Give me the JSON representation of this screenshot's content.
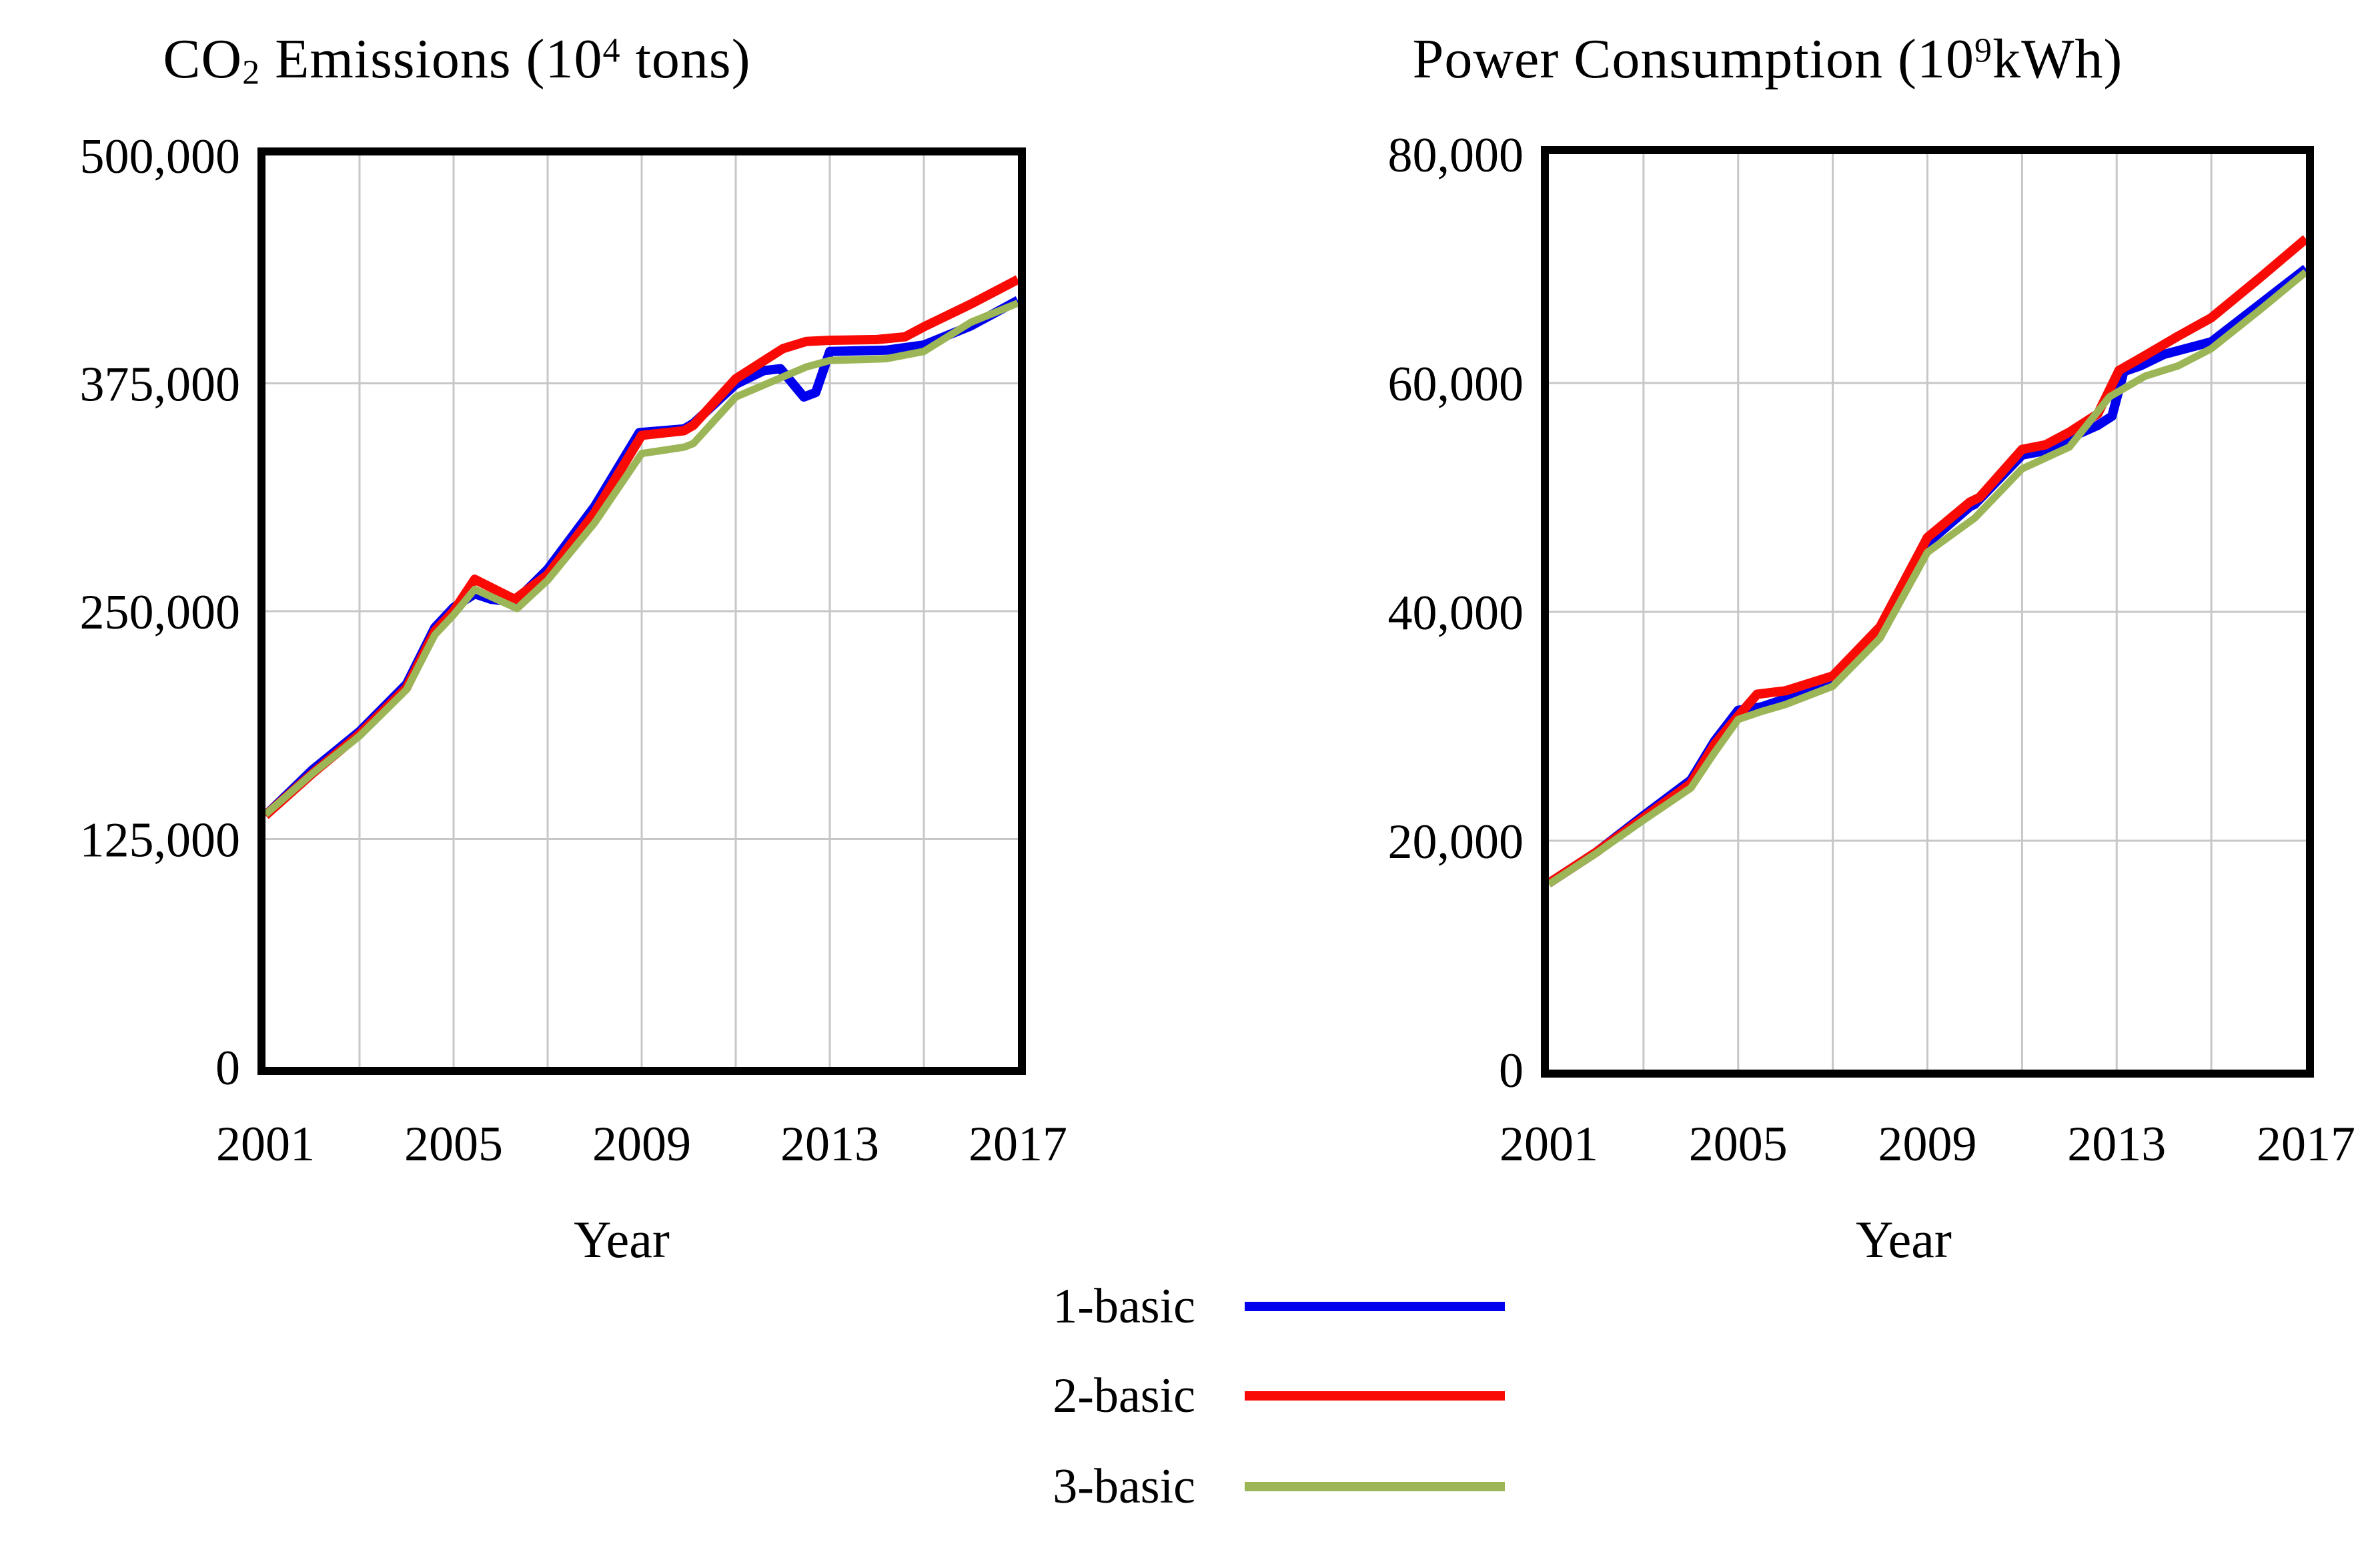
{
  "page": {
    "background": "#ffffff"
  },
  "colors": {
    "blue": "#0000EE",
    "red": "#FA0A05",
    "green": "#9BB557",
    "grid": "#C7C7C7",
    "frame": "#000000",
    "text": "#000000"
  },
  "legend": {
    "items": [
      {
        "label": "1-basic",
        "color": "blue"
      },
      {
        "label": "2-basic",
        "color": "red"
      },
      {
        "label": "3-basic",
        "color": "green"
      }
    ]
  },
  "chart_data": [
    {
      "type": "line",
      "title_parts": {
        "pre": "CO",
        "sub": "2",
        "mid": " Emissions (10",
        "sup": "4",
        "post": " tons)"
      },
      "title_plain": "CO2 Emissions (10^4 tons)",
      "xlabel": "Year",
      "xlim": [
        2001,
        2017
      ],
      "ylim": [
        0,
        500000
      ],
      "grid_on": true,
      "v_grid_years": [
        2003,
        2005,
        2007,
        2009,
        2011,
        2013,
        2015
      ],
      "h_grid_values": [
        125000,
        250000,
        375000
      ],
      "y_ticks": [
        {
          "v": 0,
          "label": "0"
        },
        {
          "v": 125000,
          "label": "125,000"
        },
        {
          "v": 250000,
          "label": "250,000"
        },
        {
          "v": 375000,
          "label": "375,000"
        },
        {
          "v": 500000,
          "label": "500,000"
        }
      ],
      "x_ticks": [
        {
          "v": 2001,
          "label": "2001"
        },
        {
          "v": 2005,
          "label": "2005"
        },
        {
          "v": 2009,
          "label": "2009"
        },
        {
          "v": 2013,
          "label": "2013"
        },
        {
          "v": 2017,
          "label": "2017"
        }
      ],
      "series": [
        {
          "name": "1-basic",
          "color": "blue",
          "width": 14,
          "points": [
            [
              2001,
              138000
            ],
            [
              2002,
              163000
            ],
            [
              2003,
              184000
            ],
            [
              2004,
              210000
            ],
            [
              2004.6,
              241000
            ],
            [
              2005,
              252000
            ],
            [
              2005.45,
              259500
            ],
            [
              2005.8,
              256500
            ],
            [
              2006.3,
              255000
            ],
            [
              2007,
              273000
            ],
            [
              2008,
              307500
            ],
            [
              2008.95,
              348000
            ],
            [
              2009.9,
              350000
            ],
            [
              2010.1,
              353000
            ],
            [
              2011,
              374500
            ],
            [
              2011.6,
              382000
            ],
            [
              2011.95,
              383000
            ],
            [
              2012.45,
              367500
            ],
            [
              2012.7,
              370000
            ],
            [
              2013,
              392500
            ],
            [
              2013.5,
              392800
            ],
            [
              2014.2,
              393200
            ],
            [
              2015,
              396000
            ],
            [
              2016,
              406500
            ],
            [
              2017,
              420500
            ]
          ]
        },
        {
          "name": "2-basic",
          "color": "red",
          "width": 14,
          "points": [
            [
              2001,
              138000
            ],
            [
              2002,
              161000
            ],
            [
              2003,
              182500
            ],
            [
              2004,
              208000
            ],
            [
              2004.6,
              239000
            ],
            [
              2005,
              250000
            ],
            [
              2005.45,
              267500
            ],
            [
              2006.3,
              256500
            ],
            [
              2007,
              270000
            ],
            [
              2008,
              304000
            ],
            [
              2009,
              346500
            ],
            [
              2009.9,
              349000
            ],
            [
              2010.1,
              352000
            ],
            [
              2011,
              377500
            ],
            [
              2012,
              394000
            ],
            [
              2012.5,
              398000
            ],
            [
              2013,
              398600
            ],
            [
              2014,
              399000
            ],
            [
              2014.6,
              400500
            ],
            [
              2015,
              406000
            ],
            [
              2016,
              418500
            ],
            [
              2017,
              432000
            ]
          ]
        },
        {
          "name": "3-basic",
          "color": "green",
          "width": 11,
          "points": [
            [
              2001,
              138500
            ],
            [
              2002,
              161000
            ],
            [
              2003,
              181500
            ],
            [
              2004,
              207000
            ],
            [
              2004.6,
              237000
            ],
            [
              2005,
              248000
            ],
            [
              2005.45,
              262000
            ],
            [
              2006.35,
              251500
            ],
            [
              2007,
              267000
            ],
            [
              2008,
              298500
            ],
            [
              2009,
              336500
            ],
            [
              2009.9,
              340000
            ],
            [
              2010.1,
              342000
            ],
            [
              2011,
              367500
            ],
            [
              2012,
              378500
            ],
            [
              2012.5,
              384000
            ],
            [
              2013,
              387500
            ],
            [
              2014.2,
              388500
            ],
            [
              2015,
              392500
            ],
            [
              2016,
              408500
            ],
            [
              2017,
              419000
            ]
          ]
        }
      ]
    },
    {
      "type": "line",
      "title_parts": {
        "pre": "Power Consumption (10",
        "sub": "",
        "mid": "",
        "sup": "9",
        "post": "kWh)"
      },
      "title_plain": "Power Consumption (10^9 kWh)",
      "xlabel": "Year",
      "xlim": [
        2001,
        2017
      ],
      "ylim": [
        0,
        80000
      ],
      "grid_on": true,
      "v_grid_years": [
        2003,
        2005,
        2007,
        2009,
        2011,
        2013,
        2015
      ],
      "h_grid_values": [
        20000,
        40000,
        60000
      ],
      "y_ticks": [
        {
          "v": 0,
          "label": "0"
        },
        {
          "v": 20000,
          "label": "20,000"
        },
        {
          "v": 40000,
          "label": "40,000"
        },
        {
          "v": 60000,
          "label": "60,000"
        },
        {
          "v": 80000,
          "label": "80,000"
        }
      ],
      "x_ticks": [
        {
          "v": 2001,
          "label": "2001"
        },
        {
          "v": 2005,
          "label": "2005"
        },
        {
          "v": 2009,
          "label": "2009"
        },
        {
          "v": 2013,
          "label": "2013"
        },
        {
          "v": 2017,
          "label": "2017"
        }
      ],
      "series": [
        {
          "name": "1-basic",
          "color": "blue",
          "width": 14,
          "points": [
            [
              2001,
              16300
            ],
            [
              2002,
              19000
            ],
            [
              2003,
              22200
            ],
            [
              2004,
              25300
            ],
            [
              2004.5,
              28700
            ],
            [
              2005,
              31400
            ],
            [
              2005.5,
              31700
            ],
            [
              2006,
              32400
            ],
            [
              2007,
              33900
            ],
            [
              2008,
              38500
            ],
            [
              2009,
              46000
            ],
            [
              2009.9,
              49200
            ],
            [
              2010,
              49400
            ],
            [
              2011,
              53700
            ],
            [
              2011.5,
              54100
            ],
            [
              2012,
              55200
            ],
            [
              2012.6,
              56300
            ],
            [
              2012.9,
              57100
            ],
            [
              2013.15,
              61000
            ],
            [
              2013.5,
              61500
            ],
            [
              2014,
              62500
            ],
            [
              2015,
              63600
            ],
            [
              2016,
              66800
            ],
            [
              2017,
              70000
            ]
          ]
        },
        {
          "name": "2-basic",
          "color": "red",
          "width": 14,
          "points": [
            [
              2001,
              16300
            ],
            [
              2002,
              19000
            ],
            [
              2003,
              22000
            ],
            [
              2004,
              25000
            ],
            [
              2004.5,
              28400
            ],
            [
              2005,
              30900
            ],
            [
              2005.4,
              32800
            ],
            [
              2006,
              33100
            ],
            [
              2007,
              34400
            ],
            [
              2008,
              38700
            ],
            [
              2009,
              46500
            ],
            [
              2009.9,
              49600
            ],
            [
              2010.1,
              50000
            ],
            [
              2011,
              54200
            ],
            [
              2011.5,
              54600
            ],
            [
              2012,
              55700
            ],
            [
              2012.6,
              57300
            ],
            [
              2013.05,
              61100
            ],
            [
              2013.6,
              62400
            ],
            [
              2014.3,
              64100
            ],
            [
              2015,
              65700
            ],
            [
              2016,
              69100
            ],
            [
              2017,
              72600
            ]
          ]
        },
        {
          "name": "3-basic",
          "color": "green",
          "width": 11,
          "points": [
            [
              2001,
              16200
            ],
            [
              2002,
              18900
            ],
            [
              2003,
              21800
            ],
            [
              2004,
              24600
            ],
            [
              2004.5,
              27700
            ],
            [
              2005,
              30600
            ],
            [
              2005.5,
              31300
            ],
            [
              2006,
              31900
            ],
            [
              2007,
              33500
            ],
            [
              2008,
              37700
            ],
            [
              2009,
              45200
            ],
            [
              2010,
              48200
            ],
            [
              2011,
              52500
            ],
            [
              2012,
              54400
            ],
            [
              2012.85,
              58800
            ],
            [
              2013.6,
              60600
            ],
            [
              2014.3,
              61500
            ],
            [
              2015,
              63000
            ],
            [
              2016,
              66300
            ],
            [
              2017,
              69700
            ]
          ]
        }
      ]
    }
  ]
}
